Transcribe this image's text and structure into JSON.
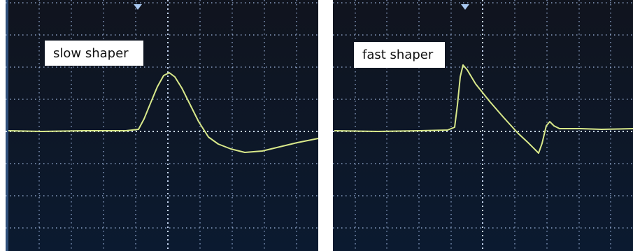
{
  "panels": [
    {
      "label": "slow shaper"
    },
    {
      "label": "fast shaper"
    }
  ]
}
